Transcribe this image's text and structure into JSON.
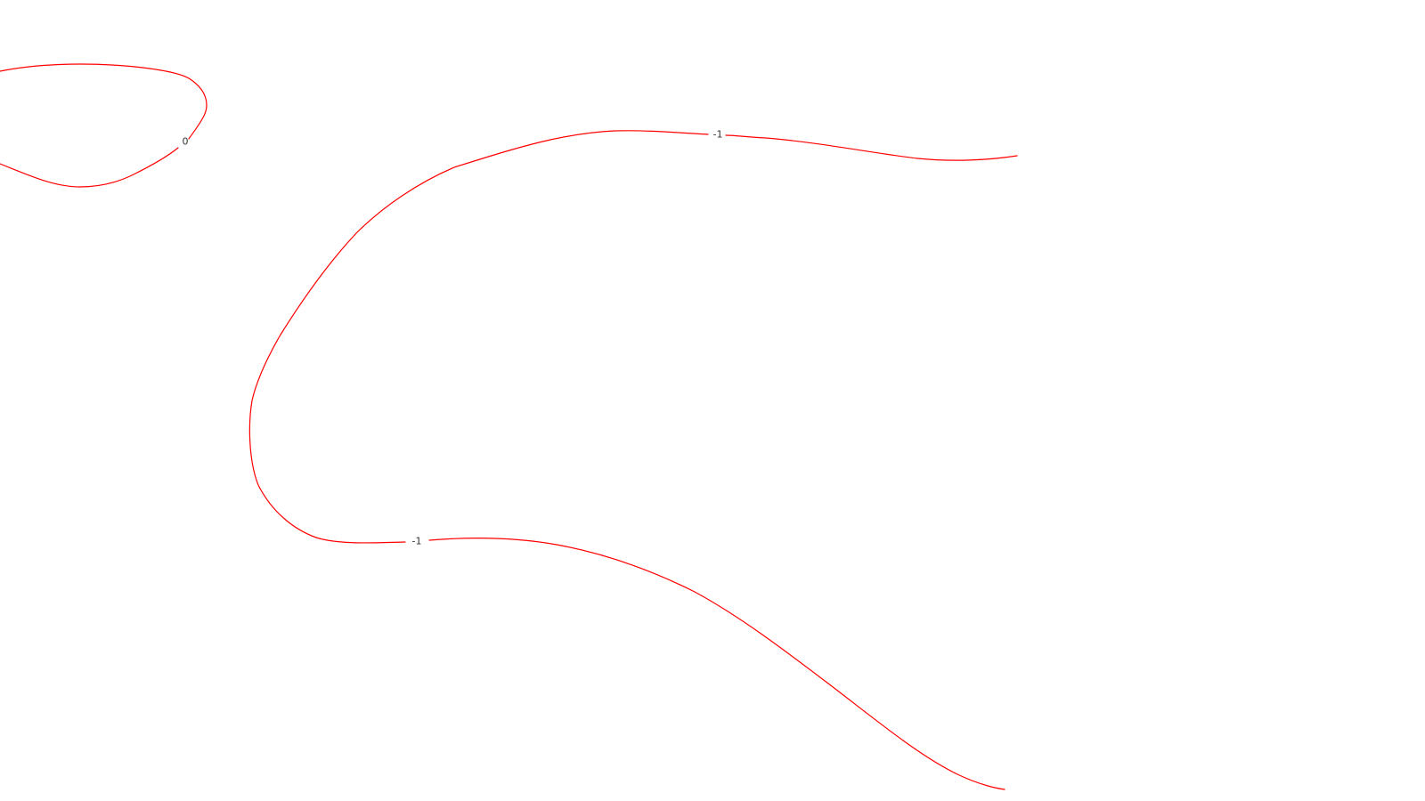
{
  "chart_data": {
    "type": "contour",
    "line_color": "#ff0000",
    "label_color": "#333333",
    "background": "#ffffff",
    "levels": [
      {
        "value": "0",
        "label": "0"
      },
      {
        "value": "-1",
        "label": "-1"
      }
    ]
  }
}
